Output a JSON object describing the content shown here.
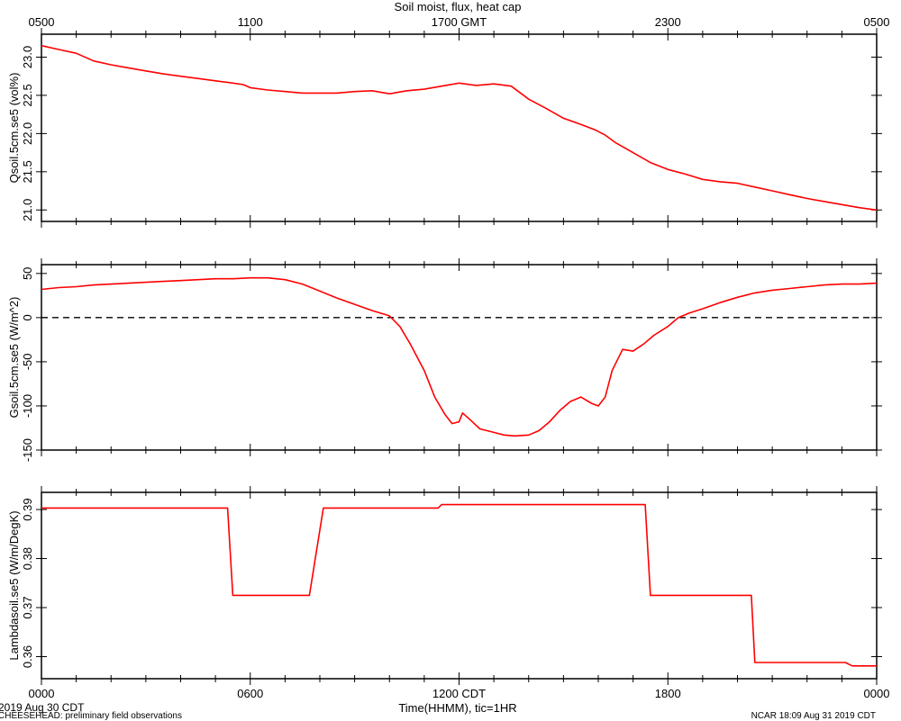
{
  "chart": {
    "title": "Soil moist, flux, heat cap",
    "top_axis_ticks": [
      "0500",
      "1100",
      "1700 GMT",
      "2300",
      "0500"
    ],
    "bottom_axis_ticks": [
      "0000",
      "0600",
      "1200 CDT",
      "1800",
      "0000"
    ],
    "xlabel": "Time(HHMM), tic=1HR",
    "line_color": "#ff0000"
  },
  "footer": {
    "date_label": "2019 Aug 30 CDT",
    "project_label": "CHEESEHEAD: preliminary field observations",
    "credit_label": "NCAR 18:09 Aug 31 2019 CDT"
  },
  "chart_data": [
    {
      "type": "line",
      "ylabel": "Qsoil.5cm.se5 (vol%)",
      "xlim": [
        0,
        24
      ],
      "ylim": [
        20.85,
        23.3
      ],
      "yticks": [
        21.0,
        21.5,
        22.0,
        22.5,
        23.0
      ],
      "ytick_labels": [
        "21.0",
        "21.5",
        "22.0",
        "22.5",
        "23.0"
      ],
      "x": [
        0,
        0.5,
        1,
        1.5,
        2,
        2.5,
        3,
        3.5,
        4,
        4.5,
        5,
        5.5,
        5.8,
        6,
        6.5,
        7,
        7.5,
        8,
        8.5,
        9,
        9.5,
        10,
        10.5,
        11,
        11.5,
        12,
        12.5,
        13,
        13.5,
        14,
        14.5,
        15,
        15.5,
        15.9,
        16.2,
        16.5,
        17,
        17.5,
        18,
        18.5,
        19,
        19.5,
        20,
        20.5,
        21,
        21.5,
        22,
        22.5,
        23,
        23.5,
        24
      ],
      "y": [
        23.15,
        23.1,
        23.05,
        22.95,
        22.9,
        22.86,
        22.82,
        22.78,
        22.75,
        22.72,
        22.69,
        22.66,
        22.64,
        22.6,
        22.57,
        22.55,
        22.53,
        22.53,
        22.53,
        22.55,
        22.56,
        22.52,
        22.56,
        22.58,
        22.62,
        22.66,
        22.63,
        22.65,
        22.62,
        22.45,
        22.33,
        22.2,
        22.12,
        22.05,
        21.98,
        21.88,
        21.75,
        21.62,
        21.53,
        21.47,
        21.4,
        21.37,
        21.35,
        21.3,
        21.25,
        21.2,
        21.15,
        21.11,
        21.07,
        21.03,
        21.0
      ]
    },
    {
      "type": "line",
      "ylabel": "Gsoil.5cm.se5 (W/m^2)",
      "xlim": [
        0,
        24
      ],
      "ylim": [
        -150,
        60
      ],
      "yticks": [
        -150,
        -100,
        -50,
        0,
        50
      ],
      "ytick_labels": [
        "-150",
        "-100",
        "-50",
        "0",
        "50"
      ],
      "zero_line": true,
      "x": [
        0,
        0.5,
        1,
        1.5,
        2,
        2.5,
        3,
        3.5,
        4,
        4.5,
        5,
        5.5,
        6,
        6.5,
        7,
        7.5,
        8,
        8.5,
        9,
        9.5,
        10,
        10.3,
        10.6,
        11,
        11.3,
        11.6,
        11.8,
        12,
        12.1,
        12.3,
        12.6,
        13,
        13.3,
        13.6,
        14,
        14.3,
        14.6,
        14.9,
        15.2,
        15.5,
        15.8,
        16,
        16.2,
        16.4,
        16.7,
        17,
        17.3,
        17.6,
        18,
        18.3,
        18.6,
        19,
        19.5,
        20,
        20.5,
        21,
        21.5,
        22,
        22.5,
        23,
        23.5,
        24
      ],
      "y": [
        32,
        34,
        35,
        37,
        38,
        39,
        40,
        41,
        42,
        43,
        44,
        44,
        45,
        45,
        43,
        38,
        30,
        22,
        15,
        8,
        2,
        -10,
        -30,
        -60,
        -90,
        -110,
        -120,
        -118,
        -108,
        -115,
        -126,
        -130,
        -133,
        -134,
        -133,
        -128,
        -118,
        -105,
        -95,
        -90,
        -97,
        -100,
        -90,
        -60,
        -36,
        -38,
        -30,
        -20,
        -10,
        0,
        5,
        10,
        17,
        23,
        28,
        31,
        33,
        35,
        37,
        38,
        38,
        39
      ]
    },
    {
      "type": "line",
      "ylabel": "Lambdasoil.se5 (W/m/DegK)",
      "xlim": [
        0,
        24
      ],
      "ylim": [
        0.3555,
        0.3935
      ],
      "yticks": [
        0.36,
        0.37,
        0.38,
        0.39
      ],
      "ytick_labels": [
        "0.36",
        "0.37",
        "0.38",
        "0.39"
      ],
      "x": [
        0,
        5.35,
        5.5,
        5.55,
        7.7,
        8.1,
        8.2,
        11.4,
        11.5,
        17.35,
        17.5,
        17.6,
        20.4,
        20.5,
        20.6,
        23.1,
        23.3,
        24
      ],
      "y": [
        0.3903,
        0.3903,
        0.3725,
        0.3725,
        0.3725,
        0.3903,
        0.3903,
        0.3903,
        0.391,
        0.391,
        0.3725,
        0.3725,
        0.3725,
        0.3588,
        0.3588,
        0.3588,
        0.3581,
        0.3581
      ]
    }
  ]
}
